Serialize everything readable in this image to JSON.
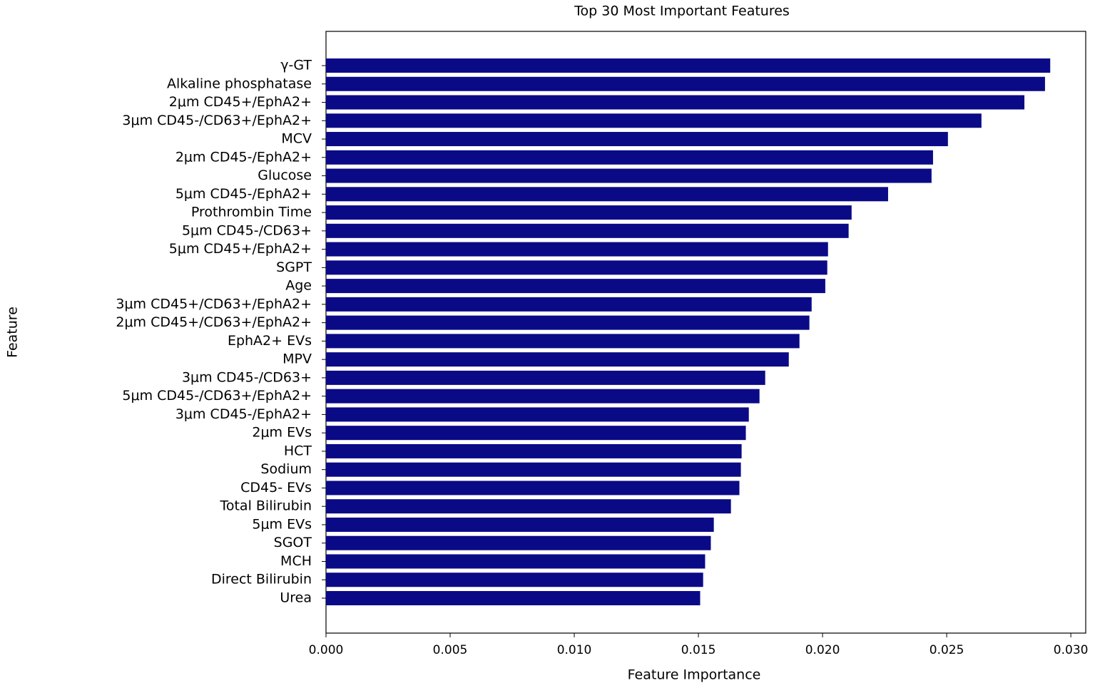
{
  "chart_data": {
    "type": "barh",
    "title": "Top 30 Most Important Features",
    "x_label": "Feature Importance",
    "y_label": "Feature",
    "color": "#0a0a87",
    "categories": [
      "γ-GT",
      "Alkaline phosphatase",
      "2μm CD45+/EphA2+",
      "3μm CD45-/CD63+/EphA2+",
      "MCV",
      "2μm CD45-/EphA2+",
      "Glucose",
      "5μm CD45-/EphA2+",
      "Prothrombin Time",
      "5μm CD45-/CD63+",
      "5μm CD45+/EphA2+",
      "SGPT",
      "Age",
      "3μm CD45+/CD63+/EphA2+",
      "2μm CD45+/CD63+/EphA2+",
      "EphA2+ EVs",
      "MPV",
      "3μm CD45-/CD63+",
      "5μm CD45-/CD63+/EphA2+",
      "3μm CD45-/EphA2+",
      "2μm EVs",
      "HCT",
      "Sodium",
      "CD45- EVs",
      "Total Bilirubin",
      "5μm EVs",
      "SGOT",
      "MCH",
      "Direct Bilirubin",
      "Urea"
    ],
    "values": [
      0.02917,
      0.02896,
      0.02813,
      0.0264,
      0.02505,
      0.02445,
      0.02439,
      0.02264,
      0.02117,
      0.02105,
      0.02022,
      0.02019,
      0.02011,
      0.01956,
      0.01947,
      0.01907,
      0.01864,
      0.01769,
      0.01746,
      0.01703,
      0.01691,
      0.01674,
      0.01671,
      0.01665,
      0.01631,
      0.01562,
      0.0155,
      0.01527,
      0.01519,
      0.01507
    ],
    "xlim": [
      0,
      0.0306
    ],
    "xticks": [
      {
        "value": 0,
        "label": "0.000"
      },
      {
        "value": 0.005,
        "label": "0.005"
      },
      {
        "value": 0.01,
        "label": "0.010"
      },
      {
        "value": 0.015,
        "label": "0.015"
      },
      {
        "value": 0.02,
        "label": "0.020"
      },
      {
        "value": 0.025,
        "label": "0.025"
      },
      {
        "value": 0.03,
        "label": "0.030"
      }
    ]
  }
}
